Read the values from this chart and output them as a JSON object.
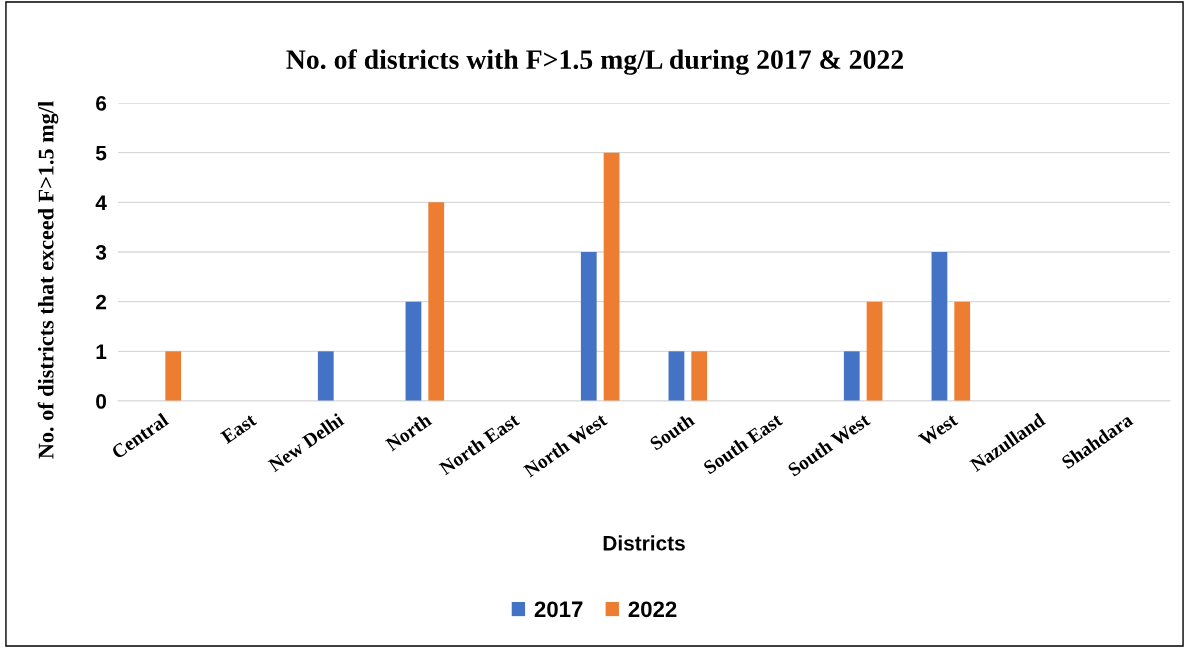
{
  "chart_data": {
    "type": "bar",
    "title": "No. of districts with F>1.5 mg/L during 2017 & 2022",
    "xlabel": "Districts",
    "ylabel": "No. of districts that exceed F>1.5 mg/l",
    "categories": [
      "Central",
      "East",
      "New Delhi",
      "North",
      "North East",
      "North West",
      "South",
      "South East",
      "South West",
      "West",
      "Nazulland",
      "Shahdara"
    ],
    "series": [
      {
        "name": "2017",
        "color": "#4472c4",
        "values": [
          0,
          0,
          1,
          2,
          0,
          3,
          1,
          0,
          1,
          3,
          0,
          0
        ]
      },
      {
        "name": "2022",
        "color": "#ed7d31",
        "values": [
          1,
          0,
          0,
          4,
          0,
          5,
          1,
          0,
          2,
          2,
          0,
          0
        ]
      }
    ],
    "ylim": [
      0,
      6
    ],
    "yticks": [
      0,
      1,
      2,
      3,
      4,
      5,
      6
    ],
    "grid": "y",
    "legend": "bottom"
  }
}
